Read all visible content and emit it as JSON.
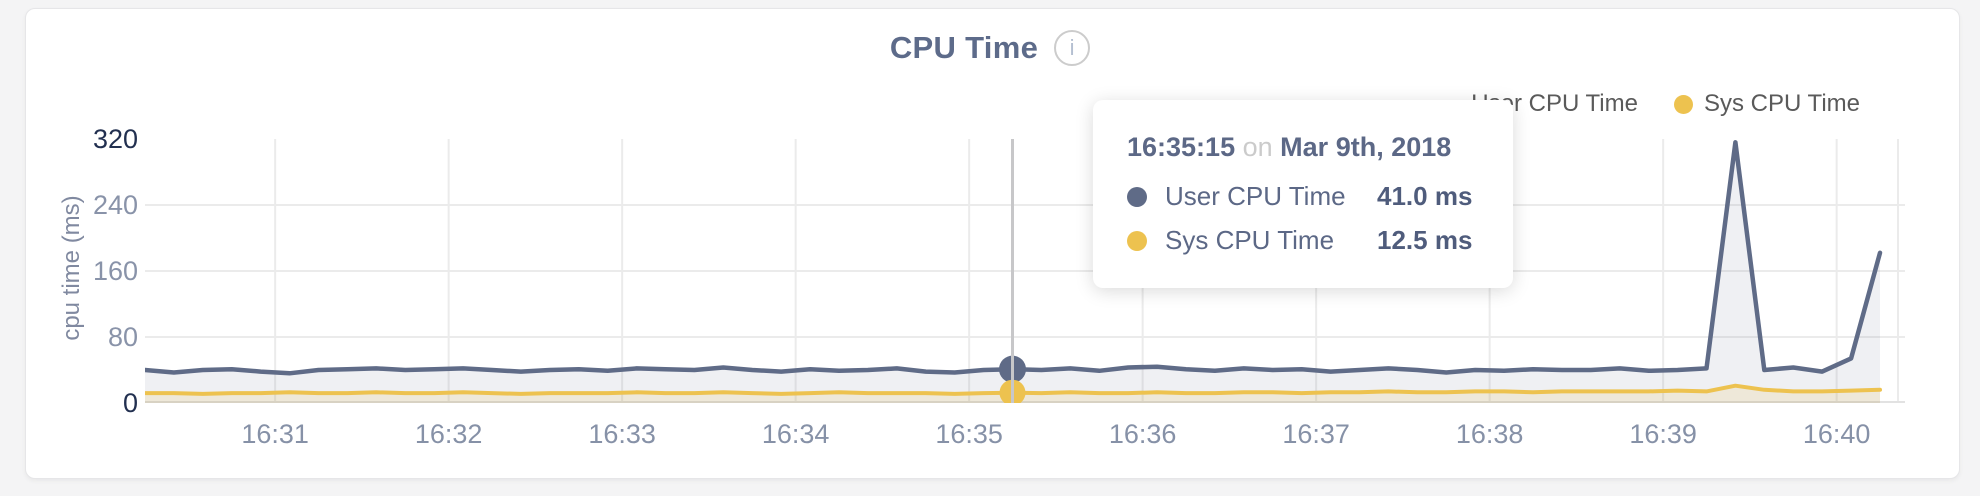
{
  "header": {
    "title": "CPU Time",
    "info_icon_glyph": "i"
  },
  "legend": {
    "items": [
      {
        "label": "User CPU Time",
        "color": "#5f6b87",
        "dot_occluded_by_tooltip": true
      },
      {
        "label": "Sys CPU Time",
        "color": "#edc24f",
        "dot_occluded_by_tooltip": false
      }
    ]
  },
  "y_axis": {
    "title": "cpu time (ms)",
    "ticks": [
      "320",
      "240",
      "160",
      "80",
      "0"
    ]
  },
  "x_axis": {
    "ticks": [
      "16:31",
      "16:32",
      "16:33",
      "16:34",
      "16:35",
      "16:36",
      "16:37",
      "16:38",
      "16:39",
      "16:40"
    ]
  },
  "tooltip": {
    "time": "16:35:15",
    "connector": "on",
    "date": "Mar 9th, 2018",
    "rows": [
      {
        "label": "User CPU Time",
        "value": "41.0 ms",
        "color": "#5f6b87"
      },
      {
        "label": "Sys CPU Time",
        "value": "12.5 ms",
        "color": "#edc24f"
      }
    ]
  },
  "chart_data": {
    "type": "line",
    "area_fill": true,
    "title": "CPU Time",
    "ylabel": "cpu time (ms)",
    "ylim": [
      0,
      320
    ],
    "y_ticks": [
      0,
      80,
      160,
      240,
      320
    ],
    "grid_y_values": [
      240,
      160,
      80
    ],
    "x_tick_labels": [
      "16:31",
      "16:32",
      "16:33",
      "16:34",
      "16:35",
      "16:36",
      "16:37",
      "16:38",
      "16:39",
      "16:40"
    ],
    "x_start": "16:30:15",
    "x_interval_seconds": 10,
    "date": "Mar 9th, 2018",
    "series": [
      {
        "name": "User CPU Time",
        "color": "#5f6b87",
        "fill": "rgba(95,107,135,0.10)",
        "values": [
          40,
          37,
          40,
          41,
          38,
          36,
          40,
          41,
          42,
          40,
          41,
          42,
          40,
          38,
          40,
          41,
          39,
          42,
          41,
          40,
          43,
          40,
          38,
          41,
          39,
          40,
          42,
          38,
          37,
          40,
          41,
          40,
          42,
          39,
          43,
          44,
          41,
          39,
          42,
          40,
          41,
          38,
          40,
          42,
          40,
          37,
          40,
          39,
          41,
          40,
          40,
          42,
          39,
          40,
          42,
          316,
          40,
          43,
          38,
          54,
          182
        ]
      },
      {
        "name": "Sys CPU Time",
        "color": "#edc24f",
        "fill": "rgba(237,194,79,0.16)",
        "values": [
          12,
          12,
          11,
          12,
          12,
          13,
          12,
          12,
          13,
          12,
          12,
          13,
          12,
          11,
          12,
          12,
          12,
          13,
          12,
          12,
          13,
          12,
          11,
          12,
          13,
          12,
          12,
          12,
          11,
          12,
          12.5,
          12,
          13,
          12,
          12,
          13,
          12,
          12,
          13,
          13,
          12,
          13,
          13,
          14,
          13,
          13,
          14,
          14,
          13,
          14,
          14,
          14,
          14,
          15,
          14,
          21,
          16,
          14,
          14,
          15,
          16
        ]
      }
    ],
    "hover": {
      "index": 30,
      "time": "16:35:15",
      "user_ms": 41.0,
      "sys_ms": 12.5
    },
    "legend_position": "top-right",
    "grid": true
  }
}
